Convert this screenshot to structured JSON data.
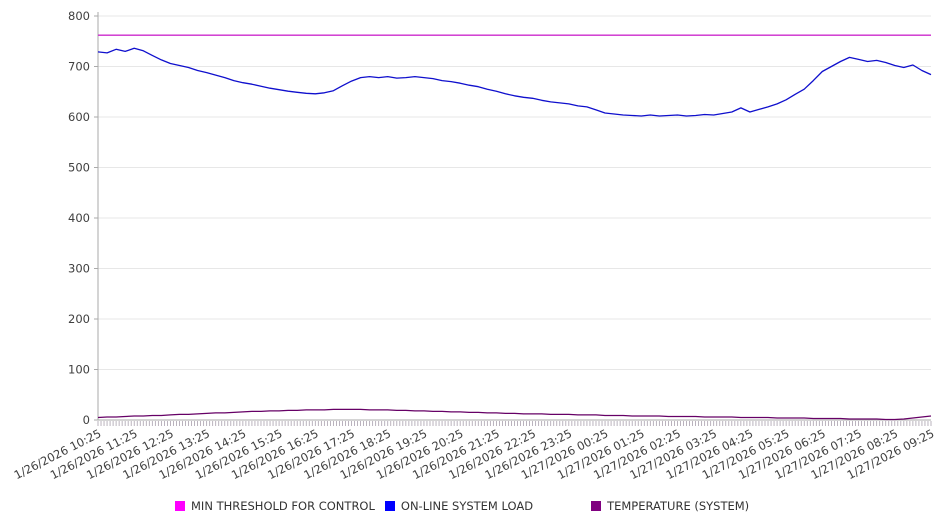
{
  "chart_data": {
    "type": "line",
    "title": "",
    "xlabel": "",
    "ylabel": "",
    "ylim": [
      0,
      800
    ],
    "ytick_step": 100,
    "ytick_labels": [
      "0",
      "100",
      "200",
      "300",
      "400",
      "500",
      "600",
      "700",
      "800"
    ],
    "grid": "horizontal",
    "legend_position": "bottom",
    "x_tick_labels": [
      "1/26/2026 10:25",
      "1/26/2026 11:25",
      "1/26/2026 12:25",
      "1/26/2026 13:25",
      "1/26/2026 14:25",
      "1/26/2026 15:25",
      "1/26/2026 16:25",
      "1/26/2026 17:25",
      "1/26/2026 18:25",
      "1/26/2026 19:25",
      "1/26/2026 20:25",
      "1/26/2026 21:25",
      "1/26/2026 22:25",
      "1/26/2026 23:25",
      "1/27/2026 00:25",
      "1/27/2026 01:25",
      "1/27/2026 02:25",
      "1/27/2026 03:25",
      "1/27/2026 04:25",
      "1/27/2026 05:25",
      "1/27/2026 06:25",
      "1/27/2026 07:25",
      "1/27/2026 08:25",
      "1/27/2026 09:25"
    ],
    "x_span_minutes": 1380,
    "x_minor_tick_interval_minutes": 5,
    "points_interval_minutes": 15,
    "axis_color": "#aaaaaa",
    "gridline_color": "#e7e7e7",
    "tick_text_color": "#404040",
    "minor_tick_color": "#a9a0ad",
    "series": [
      {
        "name": "MIN THRESHOLD FOR CONTROL",
        "type": "constant",
        "value": 762,
        "line_color": "#cc29cc",
        "swatch_color": "#ff00ff"
      },
      {
        "name": "ON-LINE SYSTEM LOAD",
        "type": "line",
        "line_color": "#0f0fcd",
        "swatch_color": "#0000ff",
        "values": [
          729,
          727,
          734,
          730,
          736,
          731,
          722,
          713,
          706,
          702,
          698,
          692,
          688,
          683,
          678,
          672,
          668,
          665,
          661,
          657,
          654,
          651,
          649,
          647,
          646,
          648,
          652,
          662,
          671,
          678,
          680,
          678,
          680,
          677,
          678,
          680,
          678,
          676,
          672,
          670,
          667,
          663,
          660,
          655,
          651,
          646,
          642,
          639,
          637,
          633,
          630,
          628,
          626,
          622,
          620,
          614,
          608,
          606,
          604,
          603,
          602,
          604,
          602,
          603,
          604,
          602,
          603,
          605,
          604,
          607,
          610,
          618,
          610,
          615,
          620,
          626,
          634,
          645,
          655,
          672,
          690,
          700,
          710,
          718,
          714,
          710,
          712,
          708,
          702,
          698,
          703,
          692,
          684
        ]
      },
      {
        "name": "TEMPERATURE (SYSTEM)",
        "type": "line",
        "line_color": "#660066",
        "swatch_color": "#800080",
        "values": [
          5,
          6,
          6,
          7,
          8,
          8,
          9,
          9,
          10,
          11,
          11,
          12,
          13,
          14,
          14,
          15,
          16,
          17,
          17,
          18,
          18,
          19,
          19,
          20,
          20,
          20,
          21,
          21,
          21,
          21,
          20,
          20,
          20,
          19,
          19,
          18,
          18,
          17,
          17,
          16,
          16,
          15,
          15,
          14,
          14,
          13,
          13,
          12,
          12,
          12,
          11,
          11,
          11,
          10,
          10,
          10,
          9,
          9,
          9,
          8,
          8,
          8,
          8,
          7,
          7,
          7,
          7,
          6,
          6,
          6,
          6,
          5,
          5,
          5,
          5,
          4,
          4,
          4,
          4,
          3,
          3,
          3,
          3,
          2,
          2,
          2,
          2,
          1,
          1,
          2,
          4,
          6,
          8
        ]
      }
    ]
  }
}
